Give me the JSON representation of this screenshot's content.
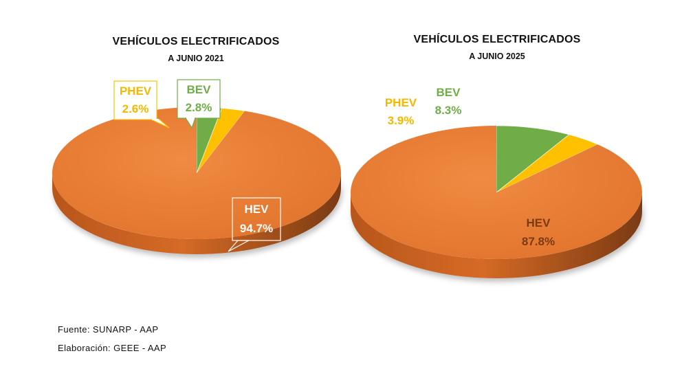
{
  "chart_data": [
    {
      "type": "pie",
      "title": "VEHÍCULOS ELECTRIFICADOS",
      "subtitle": "A JUNIO 2021",
      "slices": [
        {
          "name": "BEV",
          "value": 2.8,
          "label": "2.8%",
          "color": "#70AD47"
        },
        {
          "name": "PHEV",
          "value": 2.6,
          "label": "2.6%",
          "color": "#FFC000"
        },
        {
          "name": "HEV",
          "value": 94.7,
          "label": "94.7%",
          "color": "#ED7D31"
        }
      ]
    },
    {
      "type": "pie",
      "title": "VEHÍCULOS ELECTRIFICADOS",
      "subtitle": "A JUNIO 2025",
      "slices": [
        {
          "name": "BEV",
          "value": 8.3,
          "label": "8.3%",
          "color": "#70AD47"
        },
        {
          "name": "PHEV",
          "value": 3.9,
          "label": "3.9%",
          "color": "#FFC000"
        },
        {
          "name": "HEV",
          "value": 87.8,
          "label": "87.8%",
          "color": "#ED7D31"
        }
      ]
    }
  ],
  "footer": {
    "source": "Fuente: SUNARP - AAP",
    "made_by": "Elaboración: GEEE - AAP"
  }
}
